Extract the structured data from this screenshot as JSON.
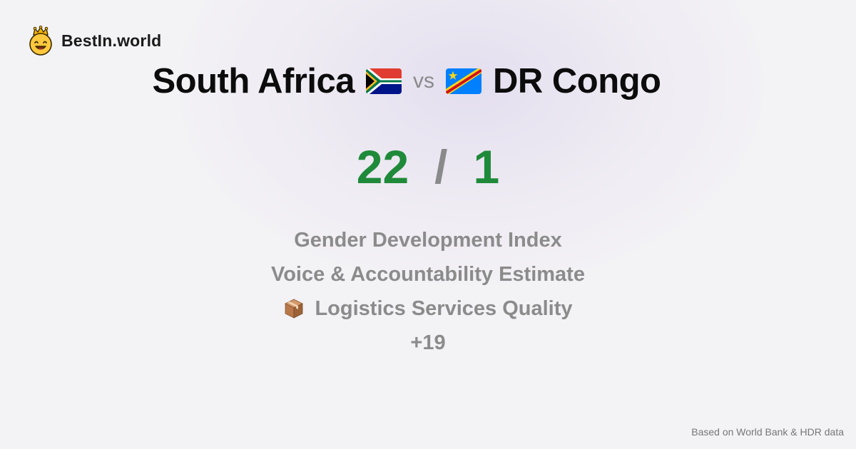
{
  "brand": {
    "name": "BestIn.world",
    "logo_icon": "crowned-smiley-icon"
  },
  "comparison": {
    "country_a": {
      "name": "South Africa",
      "flag_icon": "south-africa-flag-icon"
    },
    "vs_label": "vs",
    "country_b": {
      "name": "DR Congo",
      "flag_icon": "dr-congo-flag-icon"
    }
  },
  "score": {
    "a": "22",
    "separator": "/",
    "b": "1",
    "color": "#1f8a3a"
  },
  "metrics": [
    {
      "label": "Gender Development Index"
    },
    {
      "label": "Voice & Accountability Estimate"
    },
    {
      "label": "Logistics Services Quality",
      "icon": "package-icon"
    },
    {
      "label": "+19"
    }
  ],
  "footer": {
    "source": "Based on World Bank & HDR data"
  }
}
